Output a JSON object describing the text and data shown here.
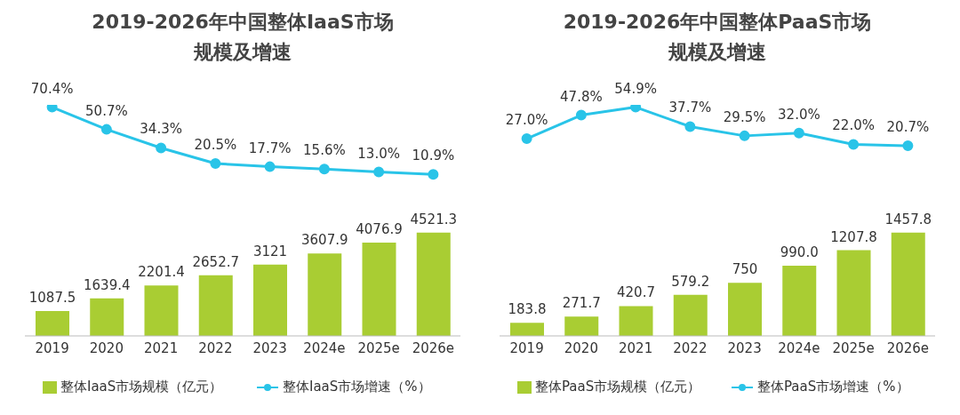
{
  "chart_data": [
    {
      "type": "line",
      "title": "2019-2026年中国整体IaaS市场规模及增速",
      "categories": [
        null,
        null,
        null,
        null,
        null,
        null,
        null,
        null
      ],
      "series": [
        {
          "name": "整体IaaS市场增速（%）",
          "color": "#29c4e8",
          "values": [
            70.4,
            50.7,
            34.3,
            20.5,
            17.7,
            15.6,
            13.0,
            10.9
          ],
          "value_labels": [
            "70.4%",
            "50.7%",
            "34.3%",
            "20.5%",
            "17.7%",
            "15.6%",
            "13.0%",
            "10.9%"
          ]
        }
      ],
      "tick_labels": false,
      "grid": false,
      "legend": "bottom",
      "marker": "circle"
    },
    {
      "type": "bar",
      "categories": [
        "2019",
        "2020",
        "2021",
        "2022",
        "2023",
        "2024e",
        "2025e",
        "2026e"
      ],
      "series": [
        {
          "name": "整体IaaS市场规模（亿元）",
          "color": "#a9cd33",
          "values": [
            1087.5,
            1639.4,
            2201.4,
            2652.7,
            3121,
            3607.9,
            4076.9,
            4521.3
          ],
          "value_labels": [
            "1087.5",
            "1639.4",
            "2201.4",
            "2652.7",
            "3121",
            "3607.9",
            "4076.9",
            "4521.3"
          ]
        }
      ],
      "tick_labels": "x",
      "grid": false,
      "legend": "bottom"
    },
    {
      "type": "line",
      "title": "2019-2026年中国整体PaaS市场规模及增速",
      "categories": [
        null,
        null,
        null,
        null,
        null,
        null,
        null,
        null
      ],
      "series": [
        {
          "name": "整体PaaS市场增速（%）",
          "color": "#29c4e8",
          "values": [
            27.0,
            47.8,
            54.9,
            37.7,
            29.5,
            32.0,
            22.0,
            20.7
          ],
          "value_labels": [
            "27.0%",
            "47.8%",
            "54.9%",
            "37.7%",
            "29.5%",
            "32.0%",
            "22.0%",
            "20.7%"
          ]
        }
      ],
      "tick_labels": false,
      "grid": false,
      "legend": "bottom",
      "marker": "circle"
    },
    {
      "type": "bar",
      "categories": [
        "2019",
        "2020",
        "2021",
        "2022",
        "2023",
        "2024e",
        "2025e",
        "2026e"
      ],
      "series": [
        {
          "name": "整体PaaS市场规模（亿元）",
          "color": "#a9cd33",
          "values": [
            183.8,
            271.7,
            420.7,
            579.2,
            750,
            990.0,
            1207.8,
            1457.8
          ],
          "value_labels": [
            "183.8",
            "271.7",
            "420.7",
            "579.2",
            "750",
            "990.0",
            "1207.8",
            "1457.8"
          ]
        }
      ],
      "tick_labels": "x",
      "grid": false,
      "legend": "bottom"
    }
  ]
}
